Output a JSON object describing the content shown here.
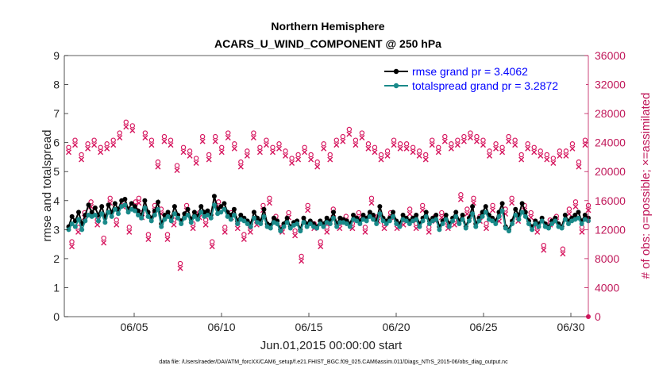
{
  "chart_data": {
    "type": "line",
    "title": "Northern Hemisphere",
    "subtitle": "ACARS_U_WIND_COMPONENT @ 250 hPa",
    "xlabel": "Jun.01,2015 00:00:00 start",
    "ylabel_left": "rmse and totalspread",
    "ylabel_right": "# of obs: o=possible; ×=assimilated",
    "footnote": "data file: /Users/raeder/DAI/ATM_forcXX/CAM6_setup/f.e21.FHIST_BGC.f09_025.CAM6assim.011/Diags_NTrS_2015-06/obs_diag_output.nc",
    "xlim": [
      1,
      31
    ],
    "ylim_left": [
      0,
      9
    ],
    "ylim_right": [
      0,
      36000
    ],
    "x_ticks": [
      5,
      10,
      15,
      20,
      25,
      30
    ],
    "x_tick_labels": [
      "06/05",
      "06/10",
      "06/15",
      "06/20",
      "06/25",
      "06/30"
    ],
    "y_ticks_left": [
      0,
      1,
      2,
      3,
      4,
      5,
      6,
      7,
      8,
      9
    ],
    "y_ticks_right": [
      0,
      4000,
      8000,
      12000,
      16000,
      20000,
      24000,
      28000,
      32000,
      36000
    ],
    "legend_position": "top-right",
    "colors": {
      "rmse": "#000000",
      "spread": "#1a8a8a",
      "obs": "#d6175f",
      "right_axis": "#c0185a"
    },
    "series": [
      {
        "name": "rmse grand pr = 3.4062",
        "key": "rmse",
        "values": [
          3.1,
          3.45,
          3.3,
          3.6,
          3.2,
          3.5,
          3.85,
          3.6,
          3.75,
          3.5,
          3.8,
          3.4,
          3.85,
          3.6,
          3.9,
          3.7,
          4.0,
          4.05,
          3.7,
          3.9,
          3.8,
          3.65,
          3.5,
          4.0,
          3.6,
          3.4,
          3.65,
          3.95,
          3.2,
          3.5,
          3.6,
          3.4,
          3.8,
          3.5,
          3.3,
          3.55,
          3.7,
          3.35,
          3.6,
          3.45,
          3.8,
          3.6,
          3.65,
          3.5,
          4.15,
          3.7,
          3.8,
          3.9,
          3.6,
          3.5,
          3.7,
          3.3,
          3.5,
          3.4,
          3.3,
          3.2,
          3.6,
          3.4,
          3.3,
          3.7,
          3.2,
          3.15,
          3.4,
          3.3,
          3.0,
          3.2,
          3.4,
          3.1,
          3.25,
          3.3,
          3.0,
          3.4,
          3.2,
          3.3,
          3.2,
          3.1,
          3.3,
          3.2,
          3.4,
          3.3,
          3.6,
          3.2,
          3.4,
          3.35,
          3.3,
          3.2,
          3.5,
          3.4,
          3.3,
          3.5,
          3.4,
          3.6,
          3.5,
          3.3,
          3.8,
          3.4,
          3.3,
          3.4,
          3.6,
          3.3,
          3.2,
          3.5,
          3.4,
          3.3,
          3.4,
          3.5,
          3.2,
          3.4,
          3.6,
          3.3,
          3.4,
          3.5,
          3.1,
          3.3,
          3.5,
          3.2,
          3.4,
          3.6,
          3.3,
          3.5,
          3.1,
          3.4,
          3.8,
          3.2,
          3.4,
          3.6,
          3.8,
          3.5,
          3.4,
          3.3,
          3.6,
          3.9,
          3.1,
          3.0,
          3.3,
          3.7,
          3.5,
          3.9,
          3.6,
          3.3,
          3.1,
          3.3,
          3.2,
          3.4,
          3.2,
          3.1,
          3.3,
          3.4,
          3.2,
          3.1,
          3.5,
          3.3,
          3.4,
          3.5,
          3.6,
          3.3,
          3.5,
          3.4
        ]
      },
      {
        "name": "totalspread grand pr = 3.2872",
        "key": "spread",
        "values": [
          3.0,
          3.2,
          3.1,
          3.35,
          3.0,
          3.3,
          3.5,
          3.45,
          3.5,
          3.3,
          3.55,
          3.25,
          3.6,
          3.45,
          3.7,
          3.55,
          3.8,
          3.85,
          3.6,
          3.7,
          3.65,
          3.5,
          3.4,
          3.75,
          3.45,
          3.3,
          3.5,
          3.7,
          3.1,
          3.35,
          3.45,
          3.3,
          3.55,
          3.4,
          3.2,
          3.4,
          3.5,
          3.25,
          3.45,
          3.35,
          3.6,
          3.45,
          3.5,
          3.4,
          3.85,
          3.55,
          3.6,
          3.7,
          3.45,
          3.35,
          3.5,
          3.2,
          3.35,
          3.3,
          3.2,
          3.1,
          3.4,
          3.25,
          3.2,
          3.45,
          3.1,
          3.05,
          3.25,
          3.2,
          2.95,
          3.1,
          3.25,
          3.05,
          3.15,
          3.2,
          2.95,
          3.25,
          3.1,
          3.2,
          3.1,
          3.05,
          3.2,
          3.1,
          3.25,
          3.2,
          3.4,
          3.1,
          3.25,
          3.25,
          3.2,
          3.1,
          3.35,
          3.3,
          3.2,
          3.35,
          3.3,
          3.45,
          3.35,
          3.2,
          3.55,
          3.3,
          3.2,
          3.3,
          3.45,
          3.2,
          3.1,
          3.35,
          3.3,
          3.2,
          3.3,
          3.35,
          3.1,
          3.3,
          3.45,
          3.2,
          3.3,
          3.35,
          3.0,
          3.2,
          3.35,
          3.1,
          3.3,
          3.45,
          3.2,
          3.35,
          3.05,
          3.3,
          3.55,
          3.1,
          3.3,
          3.45,
          3.6,
          3.35,
          3.3,
          3.2,
          3.45,
          3.65,
          3.05,
          2.95,
          3.2,
          3.5,
          3.35,
          3.6,
          3.45,
          3.2,
          3.0,
          3.2,
          3.1,
          3.3,
          3.1,
          3.05,
          3.2,
          3.3,
          3.1,
          3.05,
          3.35,
          3.2,
          3.3,
          3.35,
          3.4,
          3.2,
          3.35,
          3.3
        ]
      }
    ],
    "obs_series": {
      "name": "# of obs",
      "values": [
        23000,
        10000,
        24000,
        12000,
        22000,
        14000,
        23500,
        15500,
        24000,
        13000,
        23000,
        10500,
        23500,
        16000,
        24000,
        13000,
        25000,
        15500,
        26500,
        12000,
        26000,
        15500,
        16000,
        14000,
        25000,
        11000,
        24000,
        15000,
        21000,
        14500,
        24500,
        11000,
        24000,
        13000,
        20500,
        7000,
        23000,
        15000,
        22500,
        12500,
        21500,
        14000,
        24500,
        13000,
        22000,
        10000,
        24500,
        15500,
        23000,
        12000,
        25000,
        14000,
        23500,
        12500,
        21000,
        11000,
        22500,
        12000,
        25000,
        13000,
        23000,
        15000,
        24000,
        16000,
        23000,
        13500,
        23500,
        12000,
        22500,
        14000,
        21500,
        11500,
        22000,
        8000,
        23000,
        15000,
        22000,
        12500,
        21000,
        10000,
        23500,
        12000,
        22000,
        14500,
        24000,
        12500,
        24500,
        13500,
        25500,
        12500,
        24000,
        14000,
        25000,
        12000,
        23500,
        16000,
        23000,
        13500,
        22000,
        12500,
        22500,
        14000,
        24000,
        12500,
        23500,
        13000,
        23500,
        14500,
        23000,
        12500,
        22500,
        15000,
        22000,
        12000,
        24000,
        13500,
        23000,
        14000,
        24500,
        12500,
        23500,
        13000,
        24000,
        16500,
        24500,
        14500,
        25000,
        16000,
        24500,
        13500,
        24000,
        12500,
        22500,
        15000,
        23500,
        13500,
        23000,
        14500,
        24500,
        16000,
        24000,
        13500,
        22000,
        15000,
        23500,
        14000,
        23000,
        12000,
        22500,
        9500,
        22000,
        13000,
        21500,
        13500,
        22500,
        9000,
        22500,
        14500,
        23500,
        15500,
        21000,
        12000,
        24000,
        15000
      ]
    }
  }
}
